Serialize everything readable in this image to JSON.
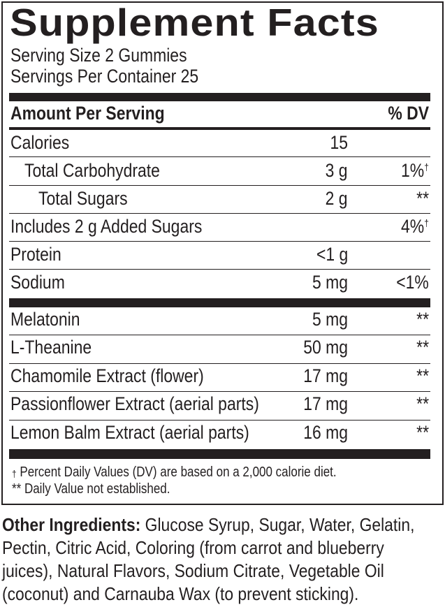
{
  "title": "Supplement Facts",
  "serving_size": "Serving Size 2 Gummies",
  "servings_per_container": "Servings Per Container 25",
  "header": {
    "amount": "Amount Per Serving",
    "dv": "% DV"
  },
  "nutrients": [
    {
      "name": "Calories",
      "amount": "15",
      "dv": "",
      "dv_mark": ""
    },
    {
      "name": "Total Carbohydrate",
      "amount": "3 g",
      "dv": "1%",
      "dv_mark": "†"
    },
    {
      "name": "Total Sugars",
      "amount": "2 g",
      "dv": "**",
      "dv_mark": ""
    },
    {
      "name": "Includes 2 g Added Sugars",
      "amount": "",
      "dv": "4%",
      "dv_mark": "†"
    },
    {
      "name": "Protein",
      "amount": "<1 g",
      "dv": "",
      "dv_mark": ""
    },
    {
      "name": "Sodium",
      "amount": "5 mg",
      "dv": "<1%",
      "dv_mark": ""
    }
  ],
  "ingredients": [
    {
      "name": "Melatonin",
      "amount": "5 mg",
      "dv": "**"
    },
    {
      "name": "L-Theanine",
      "amount": "50 mg",
      "dv": "**"
    },
    {
      "name": "Chamomile Extract (flower)",
      "amount": "17 mg",
      "dv": "**"
    },
    {
      "name": "Passionflower Extract (aerial parts)",
      "amount": "17 mg",
      "dv": "**"
    },
    {
      "name": "Lemon Balm Extract (aerial parts)",
      "amount": "16 mg",
      "dv": "**"
    }
  ],
  "footnotes": {
    "dagger_mark": "†",
    "dagger": "Percent Daily Values (DV) are based on a 2,000 calorie diet.",
    "stars": "** Daily Value not established."
  },
  "other_ingredients": {
    "label": "Other Ingredients:",
    "text": " Glucose Syrup, Sugar, Water, Gelatin, Pectin, Citric Acid, Coloring (from carrot and blueberry juices), Natural Flavors, Sodium Citrate, Vegetable Oil (coconut) and Carnauba Wax (to prevent sticking)."
  }
}
